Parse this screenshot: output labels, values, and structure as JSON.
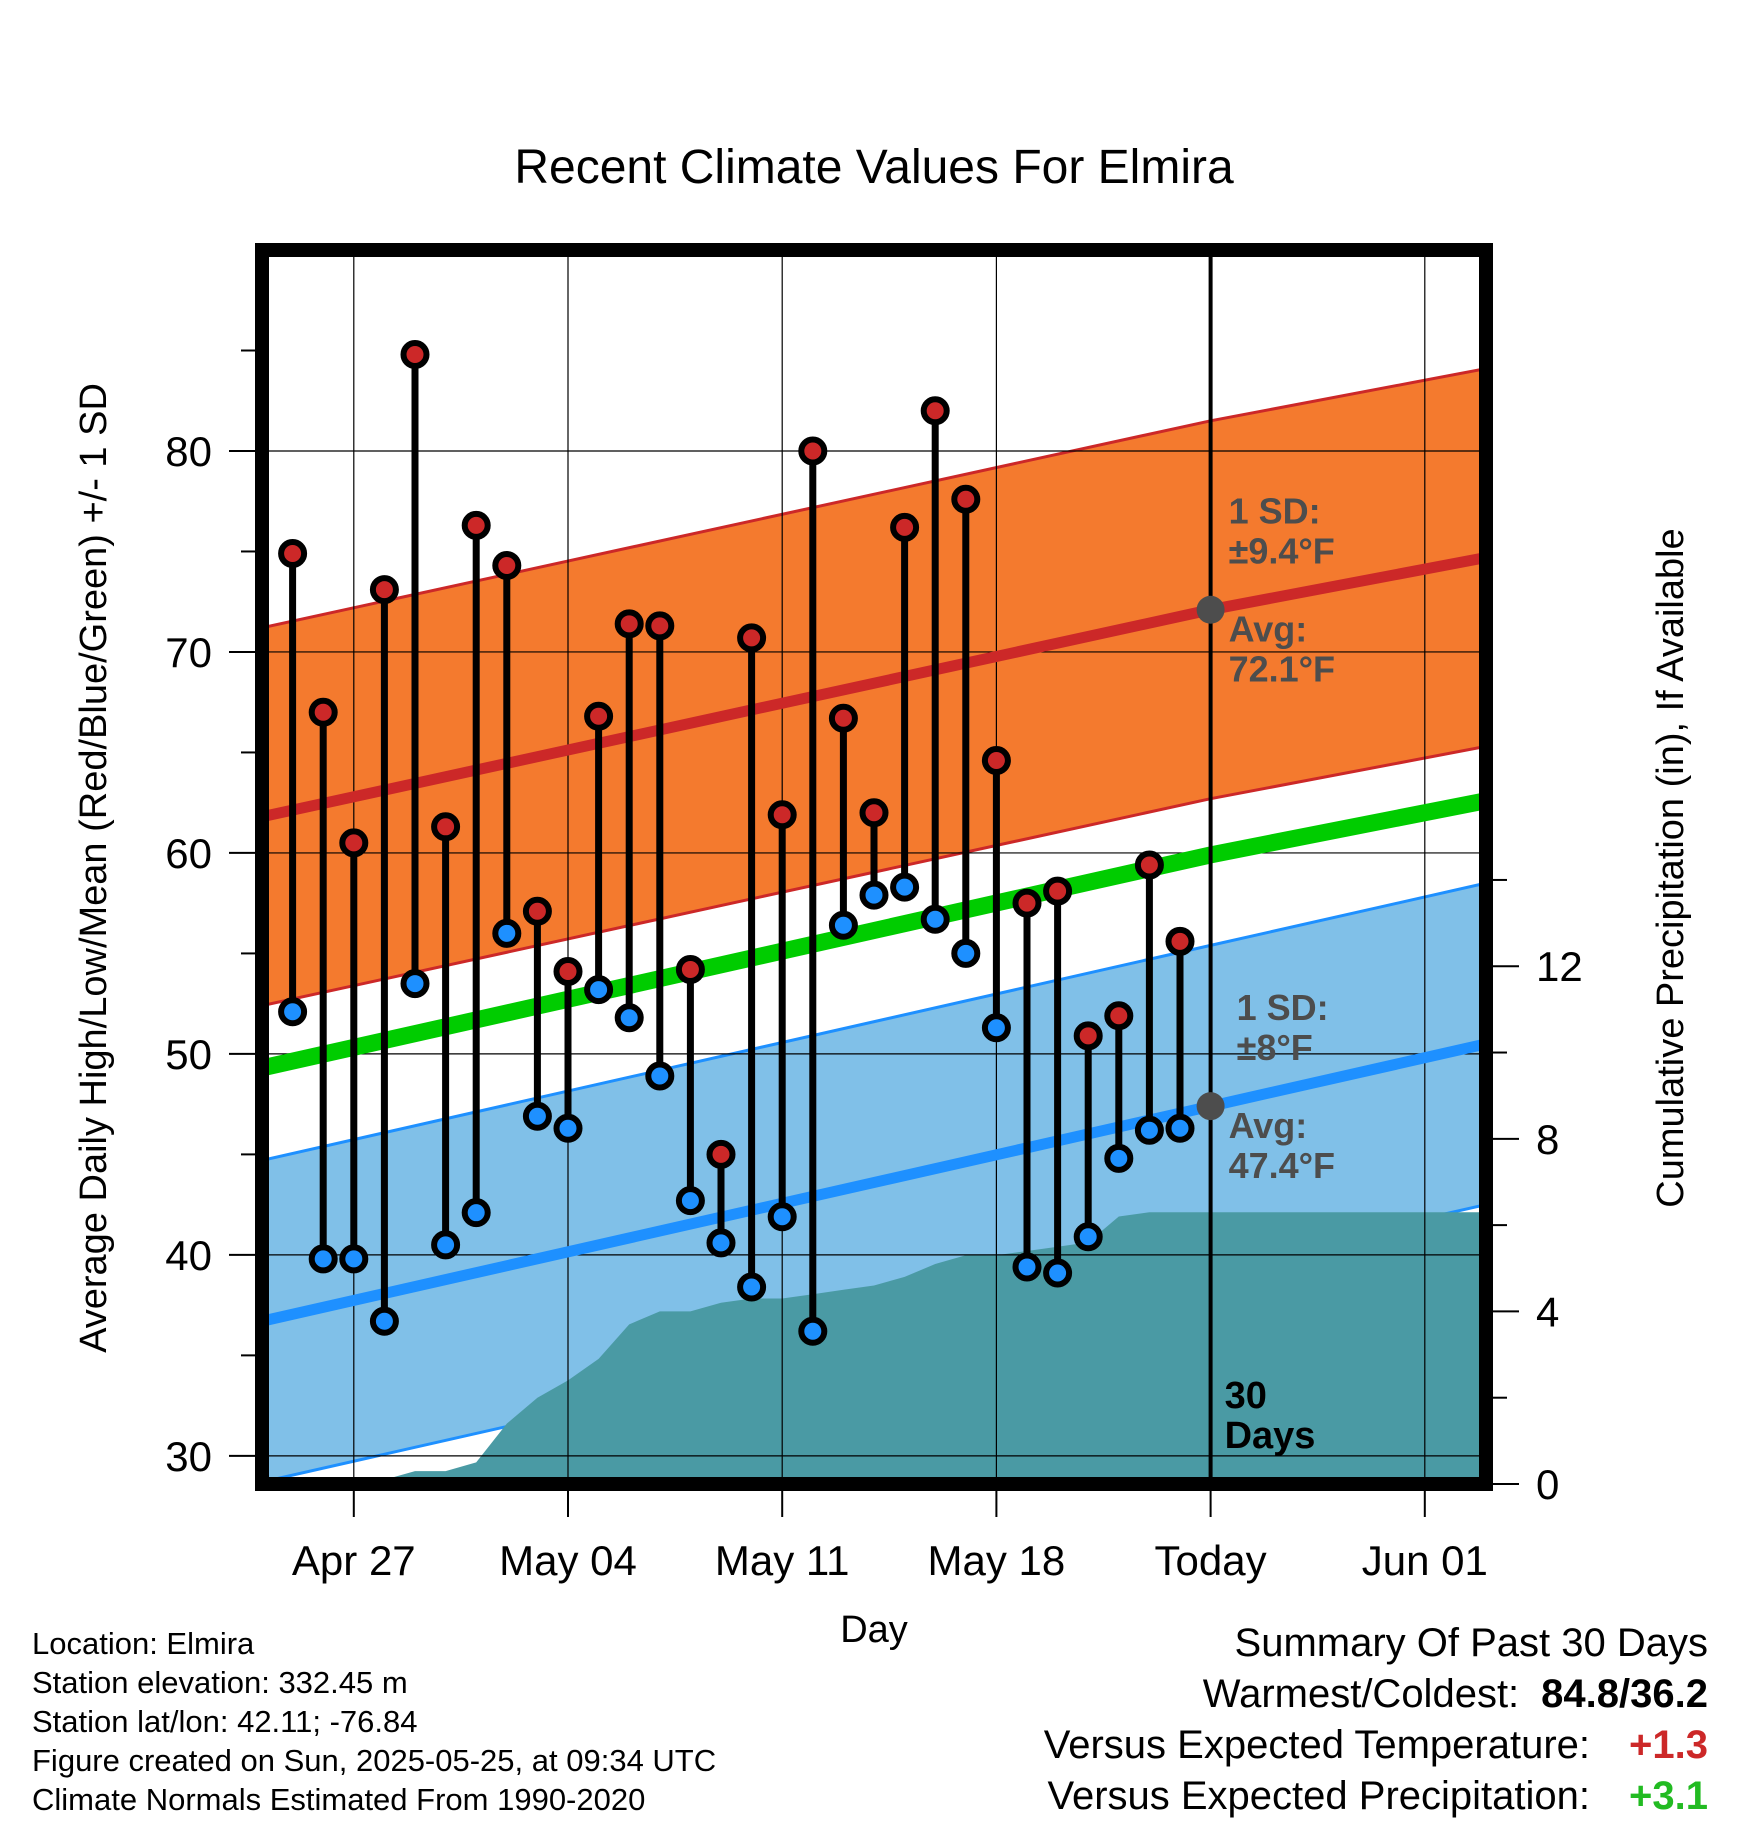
{
  "chart_data": {
    "type": "line",
    "title": "Recent Climate Values For Elmira",
    "xlabel": "Day",
    "ylabel": "Average Daily High/Low/Mean (Red/Blue/Green) +/- 1 SD",
    "y2label": "Cumulative Precipitation (in), If Available",
    "x_tick_labels": [
      "Apr 27",
      "May 04",
      "May 11",
      "May 18",
      "Today",
      "Jun 01"
    ],
    "x_range": [
      "2025-04-24",
      "2025-06-03"
    ],
    "ylim": [
      28.6,
      90
    ],
    "y_ticks": [
      30,
      40,
      50,
      60,
      70,
      80
    ],
    "y2lim": [
      0,
      28.6
    ],
    "y2_ticks": [
      0,
      4,
      8,
      12
    ],
    "grid": true,
    "today": "2025-05-25",
    "days_window": "30 Days",
    "colors": {
      "high": "#cc2828",
      "high_band": "#f47a2e",
      "low": "#1e90ff",
      "low_band": "#80c0e8",
      "mean": "#00cc00",
      "precip": "#4a9aa4",
      "today_marker": "#4d4d4d"
    },
    "normals": {
      "x": [
        "2025-04-24",
        "2025-05-25",
        "2025-06-03"
      ],
      "high_avg": [
        61.8,
        72.1,
        74.7
      ],
      "high_sd": 9.4,
      "low_avg": [
        36.7,
        47.4,
        50.5
      ],
      "low_sd": 8.0,
      "mean_avg": [
        49.3,
        59.9,
        62.6
      ]
    },
    "annotations": {
      "high_sd": [
        "1 SD:",
        "±9.4°F"
      ],
      "high_avg": [
        "Avg:",
        "72.1°F"
      ],
      "low_sd": [
        "1 SD:",
        "±8°F"
      ],
      "low_avg": [
        "Avg:",
        "47.4°F"
      ],
      "days": [
        "30",
        "Days"
      ]
    },
    "series": [
      {
        "name": "High",
        "x": [
          "2025-04-25",
          "2025-04-26",
          "2025-04-27",
          "2025-04-28",
          "2025-04-29",
          "2025-04-30",
          "2025-05-01",
          "2025-05-02",
          "2025-05-03",
          "2025-05-04",
          "2025-05-05",
          "2025-05-06",
          "2025-05-07",
          "2025-05-08",
          "2025-05-09",
          "2025-05-10",
          "2025-05-11",
          "2025-05-12",
          "2025-05-13",
          "2025-05-14",
          "2025-05-15",
          "2025-05-16",
          "2025-05-17",
          "2025-05-18",
          "2025-05-19",
          "2025-05-20",
          "2025-05-21",
          "2025-05-22",
          "2025-05-23",
          "2025-05-24"
        ],
        "values": [
          74.9,
          67.0,
          60.5,
          73.1,
          84.8,
          61.3,
          76.3,
          74.3,
          57.1,
          54.1,
          66.8,
          71.4,
          71.3,
          54.2,
          45.0,
          70.7,
          61.9,
          80.0,
          66.7,
          62.0,
          76.2,
          82.0,
          77.6,
          64.6,
          57.5,
          58.1,
          50.9,
          51.9,
          59.4,
          55.6
        ]
      },
      {
        "name": "Low",
        "x": [
          "2025-04-25",
          "2025-04-26",
          "2025-04-27",
          "2025-04-28",
          "2025-04-29",
          "2025-04-30",
          "2025-05-01",
          "2025-05-02",
          "2025-05-03",
          "2025-05-04",
          "2025-05-05",
          "2025-05-06",
          "2025-05-07",
          "2025-05-08",
          "2025-05-09",
          "2025-05-10",
          "2025-05-11",
          "2025-05-12",
          "2025-05-13",
          "2025-05-14",
          "2025-05-15",
          "2025-05-16",
          "2025-05-17",
          "2025-05-18",
          "2025-05-19",
          "2025-05-20",
          "2025-05-21",
          "2025-05-22",
          "2025-05-23",
          "2025-05-24"
        ],
        "values": [
          52.1,
          39.8,
          39.8,
          36.7,
          53.5,
          40.5,
          42.1,
          56.0,
          46.9,
          46.3,
          53.2,
          51.8,
          48.9,
          42.7,
          40.6,
          38.4,
          41.9,
          36.2,
          56.4,
          57.9,
          58.3,
          56.7,
          55.0,
          51.3,
          39.4,
          39.1,
          40.9,
          44.8,
          46.2,
          46.3
        ]
      },
      {
        "name": "Cumulative Precipitation",
        "x": [
          "2025-04-24",
          "2025-04-25",
          "2025-04-26",
          "2025-04-27",
          "2025-04-28",
          "2025-04-29",
          "2025-04-30",
          "2025-05-01",
          "2025-05-02",
          "2025-05-03",
          "2025-05-04",
          "2025-05-05",
          "2025-05-06",
          "2025-05-07",
          "2025-05-08",
          "2025-05-09",
          "2025-05-10",
          "2025-05-11",
          "2025-05-12",
          "2025-05-13",
          "2025-05-14",
          "2025-05-15",
          "2025-05-16",
          "2025-05-17",
          "2025-05-18",
          "2025-05-19",
          "2025-05-20",
          "2025-05-21",
          "2025-05-22",
          "2025-05-23",
          "2025-05-24",
          "2025-05-25",
          "2025-06-03"
        ],
        "values": [
          0,
          0,
          0.1,
          0.1,
          0.1,
          0.3,
          0.3,
          0.5,
          1.4,
          2.0,
          2.4,
          2.9,
          3.7,
          4.0,
          4.0,
          4.2,
          4.3,
          4.3,
          4.4,
          4.5,
          4.6,
          4.8,
          5.1,
          5.3,
          5.3,
          5.4,
          5.5,
          5.6,
          6.2,
          6.3,
          6.3,
          6.3,
          6.3
        ]
      }
    ]
  },
  "footer": {
    "location": "Location: Elmira",
    "elevation": "Station elevation: 332.45 m",
    "latlon": "Station lat/lon: 42.11; -76.84",
    "created": "Figure created on Sun, 2025-05-25, at 09:34 UTC",
    "normals": "Climate Normals Estimated From 1990-2020"
  },
  "summary": {
    "title": "Summary Of Past 30 Days",
    "warmest_coldest_label": "Warmest/Coldest:",
    "warmest_coldest_value": "84.8/36.2",
    "temp_label": "Versus Expected Temperature:",
    "temp_value": "+1.3",
    "temp_color": "#cc2828",
    "precip_label": "Versus Expected Precipitation:",
    "precip_value": "+3.1",
    "precip_color": "#22bb22"
  }
}
